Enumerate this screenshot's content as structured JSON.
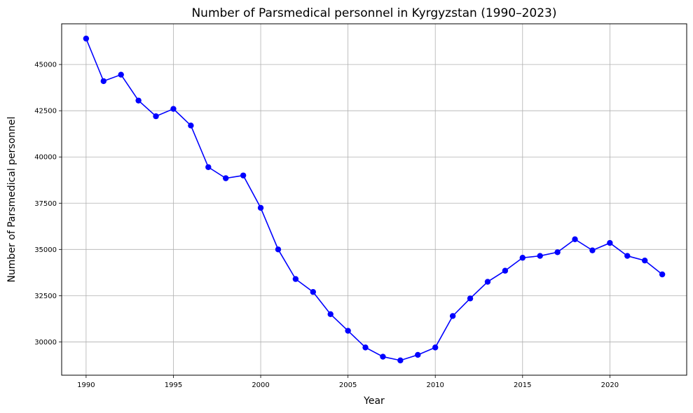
{
  "chart_data": {
    "type": "line",
    "title": "Number of Parsmedical personnel in Kyrgyzstan (1990–2023)",
    "xlabel": "Year",
    "ylabel": "Number of Parsmedical personnel",
    "xlim": [
      1988.6,
      2024.4
    ],
    "ylim": [
      28200,
      47200
    ],
    "x_ticks": [
      1990,
      1995,
      2000,
      2005,
      2010,
      2015,
      2020
    ],
    "y_ticks": [
      30000,
      32500,
      35000,
      37500,
      40000,
      42500,
      45000
    ],
    "grid": true,
    "line_color": "#0000ff",
    "marker": "circle",
    "series": [
      {
        "x": [
          1990,
          1991,
          1992,
          1993,
          1994,
          1995,
          1996,
          1997,
          1998,
          1999,
          2000,
          2001,
          2002,
          2003,
          2004,
          2005,
          2006,
          2007,
          2008,
          2009,
          2010,
          2011,
          2012,
          2013,
          2014,
          2015,
          2016,
          2017,
          2018,
          2019,
          2020,
          2021,
          2022,
          2023
        ],
        "values": [
          46400,
          44100,
          44450,
          43050,
          42200,
          42600,
          41700,
          39450,
          38850,
          39000,
          37250,
          35000,
          33400,
          32700,
          31500,
          30600,
          29700,
          29200,
          29000,
          29300,
          29700,
          31400,
          32350,
          33250,
          33850,
          34550,
          34650,
          34850,
          35550,
          34950,
          35350,
          34650,
          34400,
          33650
        ]
      }
    ]
  }
}
